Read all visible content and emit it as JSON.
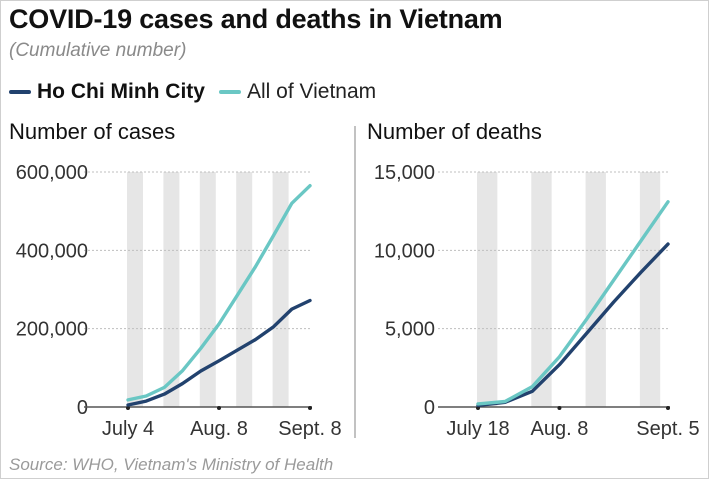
{
  "header": {
    "title": "COVID-19 cases and deaths in Vietnam",
    "subtitle": "(Cumulative number)"
  },
  "legend": [
    {
      "label": "Ho Chi Minh City",
      "color": "#22426e"
    },
    {
      "label": "All of Vietnam",
      "color": "#6ac7c4"
    }
  ],
  "source": "Source: WHO, Vietnam's Ministry of Health",
  "colors": {
    "shade": "#e6e6e6",
    "axis": "#555555",
    "divider": "#9a9a9a"
  },
  "chart_data": [
    {
      "type": "line",
      "panel_title": "Number of cases",
      "xlabel": "",
      "ylabel": "Number of cases",
      "ylim": [
        0,
        600000
      ],
      "yticks": [
        0,
        200000,
        400000,
        600000
      ],
      "ytick_labels": [
        "0",
        "200,000",
        "400,000",
        "600,000"
      ],
      "x": [
        "Jul 4",
        "Jul 11",
        "Jul 18",
        "Jul 25",
        "Aug 1",
        "Aug 8",
        "Aug 15",
        "Aug 22",
        "Aug 29",
        "Sep 5",
        "Sep 8"
      ],
      "xtick_labels": [
        {
          "label": "July 4",
          "index": 0
        },
        {
          "label": "Aug. 8",
          "index": 5
        },
        {
          "label": "Sept. 8",
          "index": 10
        }
      ],
      "shaded_weeks": [
        [
          0,
          1
        ],
        [
          2,
          3
        ],
        [
          4,
          5
        ],
        [
          6,
          7
        ],
        [
          8,
          9
        ]
      ],
      "series": [
        {
          "name": "Ho Chi Minh City",
          "color": "#22426e",
          "values": [
            5000,
            15000,
            33000,
            60000,
            92000,
            118000,
            145000,
            172000,
            205000,
            250000,
            272000
          ]
        },
        {
          "name": "All of Vietnam",
          "color": "#6ac7c4",
          "values": [
            18000,
            28000,
            50000,
            93000,
            150000,
            212000,
            285000,
            358000,
            438000,
            520000,
            565000
          ]
        }
      ]
    },
    {
      "type": "line",
      "panel_title": "Number of deaths",
      "xlabel": "",
      "ylabel": "Number of deaths",
      "ylim": [
        0,
        15000
      ],
      "yticks": [
        0,
        5000,
        10000,
        15000
      ],
      "ytick_labels": [
        "0",
        "5,000",
        "10,000",
        "15,000"
      ],
      "x": [
        "Jul 18",
        "Jul 25",
        "Aug 1",
        "Aug 8",
        "Aug 15",
        "Aug 22",
        "Aug 29",
        "Sep 5"
      ],
      "xtick_labels": [
        {
          "label": "July 18",
          "index": 0
        },
        {
          "label": "Aug. 8",
          "index": 3
        },
        {
          "label": "Sept. 5",
          "index": 7
        }
      ],
      "shaded_weeks": [
        [
          0,
          1
        ],
        [
          2,
          3
        ],
        [
          4,
          5
        ],
        [
          6,
          7
        ]
      ],
      "series": [
        {
          "name": "Ho Chi Minh City",
          "color": "#22426e",
          "values": [
            100,
            300,
            1000,
            2700,
            4700,
            6700,
            8600,
            10400
          ]
        },
        {
          "name": "All of Vietnam",
          "color": "#6ac7c4",
          "values": [
            200,
            350,
            1300,
            3200,
            5600,
            8100,
            10600,
            13100
          ]
        }
      ]
    }
  ]
}
